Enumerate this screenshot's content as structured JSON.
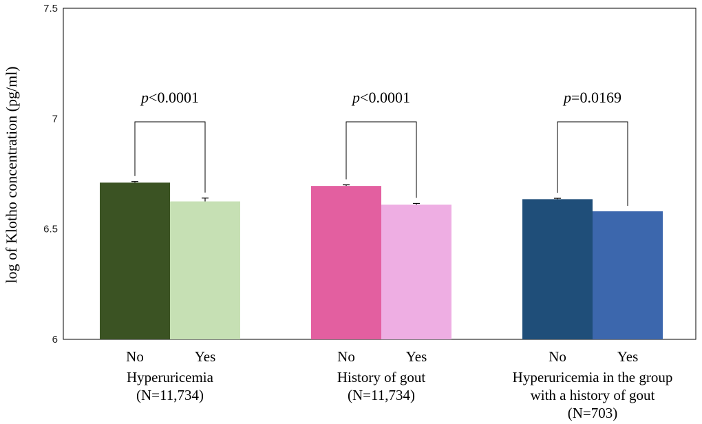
{
  "chart_data": {
    "type": "bar",
    "title": "",
    "ylabel": "log of Klotho concentration  (pg/ml)",
    "ylim": [
      6,
      7.5
    ],
    "yticks": [
      "6",
      "6.5",
      "7",
      "7.5"
    ],
    "grid": false,
    "legend": "none",
    "groups": [
      {
        "label_lines": [
          "Hyperuricemia",
          "(N=11,734)"
        ],
        "bars": [
          {
            "category": "No",
            "value": 6.71,
            "error": 0.005,
            "color": "#3b5323"
          },
          {
            "category": "Yes",
            "value": 6.625,
            "error": 0.015,
            "color": "#c6e0b4"
          }
        ],
        "p_prefix": "p",
        "p_value": "<0.0001"
      },
      {
        "label_lines": [
          "History of gout",
          "(N=11,734)"
        ],
        "bars": [
          {
            "category": "No",
            "value": 6.695,
            "error": 0.005,
            "color": "#e35fa0"
          },
          {
            "category": "Yes",
            "value": 6.61,
            "error": 0.006,
            "color": "#eeaee3"
          }
        ],
        "p_prefix": "p",
        "p_value": "<0.0001"
      },
      {
        "label_lines": [
          "Hyperuricemia in the group",
          "with a history of gout",
          "(N=703)"
        ],
        "bars": [
          {
            "category": "No",
            "value": 6.635,
            "error": 0.004,
            "color": "#1f4e79"
          },
          {
            "category": "Yes",
            "value": 6.58,
            "error": 0.0,
            "color": "#3c67ad"
          }
        ],
        "p_prefix": "p",
        "p_value": "=0.0169"
      }
    ]
  }
}
